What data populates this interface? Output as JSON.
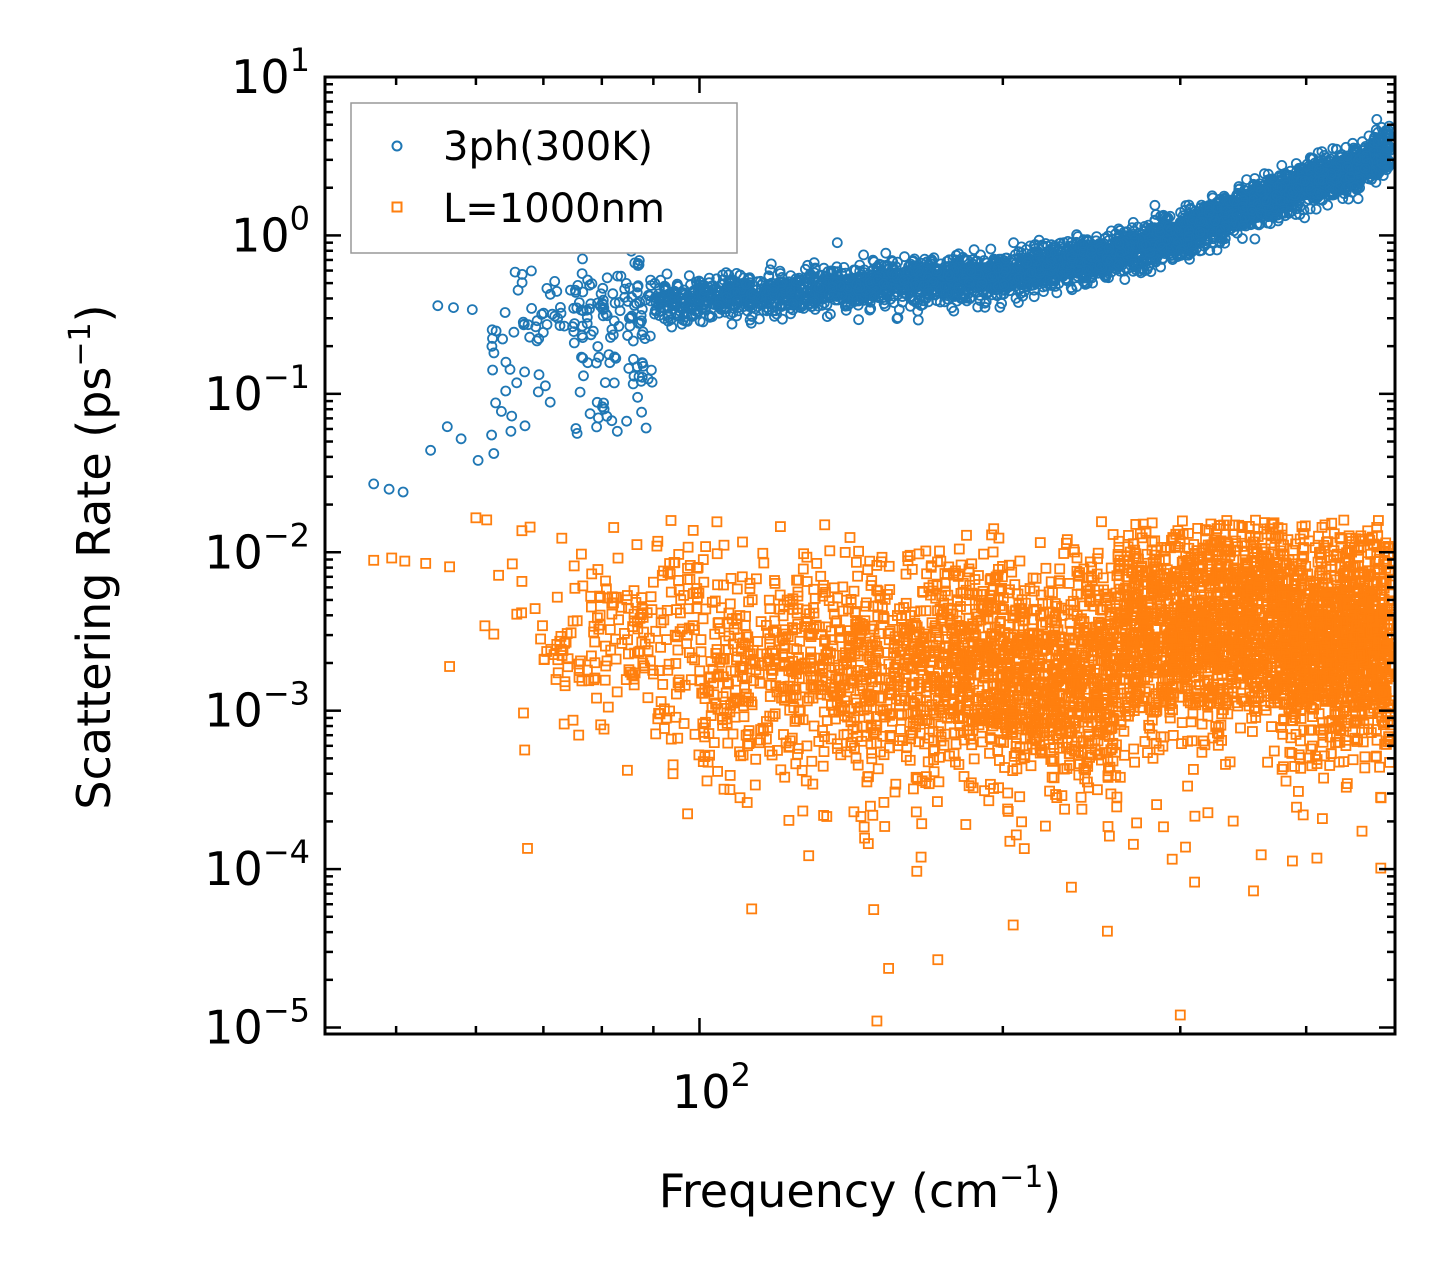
{
  "chart_data": {
    "type": "scatter",
    "xscale": "log",
    "yscale": "log",
    "xlabel": "Frequency (cm",
    "xlabel_sup": "−1",
    "xlabel_tail": ")",
    "ylabel": "Scattering Rate (ps",
    "ylabel_sup": "−1",
    "ylabel_tail": ")",
    "xlim": [
      42.5,
      490
    ],
    "ylim": [
      9.1e-06,
      10
    ],
    "x_ticks": [
      {
        "value": 100,
        "base": "10",
        "exp": "2"
      }
    ],
    "y_ticks": [
      {
        "value": 10,
        "base": "10",
        "exp": "1"
      },
      {
        "value": 1,
        "base": "10",
        "exp": "0"
      },
      {
        "value": 0.1,
        "base": "10",
        "exp": "−1"
      },
      {
        "value": 0.01,
        "base": "10",
        "exp": "−2"
      },
      {
        "value": 0.001,
        "base": "10",
        "exp": "−3"
      },
      {
        "value": 0.0001,
        "base": "10",
        "exp": "−4"
      },
      {
        "value": 1e-05,
        "base": "10",
        "exp": "−5"
      }
    ],
    "legend_position": "top-left",
    "series": [
      {
        "name": "3ph(300K)",
        "marker": "circle",
        "color": "#1f77b4",
        "trend": {
          "x": [
            50,
            60,
            70,
            80,
            100,
            130,
            160,
            200,
            250,
            300,
            350,
            400,
            450,
            480
          ],
          "y": [
            0.026,
            0.25,
            0.32,
            0.36,
            0.4,
            0.45,
            0.5,
            0.55,
            0.72,
            1.0,
            1.5,
            2.1,
            2.6,
            3.5
          ]
        },
        "sample_points": [
          {
            "x": 47.5,
            "y": 0.027
          },
          {
            "x": 49.2,
            "y": 0.025
          },
          {
            "x": 50.8,
            "y": 0.024
          },
          {
            "x": 54.1,
            "y": 0.044
          },
          {
            "x": 56.2,
            "y": 0.062
          },
          {
            "x": 58.0,
            "y": 0.052
          },
          {
            "x": 60.3,
            "y": 0.038
          },
          {
            "x": 62.5,
            "y": 0.042
          },
          {
            "x": 65.0,
            "y": 0.058
          },
          {
            "x": 55.0,
            "y": 0.36
          },
          {
            "x": 57.0,
            "y": 0.35
          },
          {
            "x": 59.5,
            "y": 0.34
          },
          {
            "x": 205.0,
            "y": 0.9
          },
          {
            "x": 137.0,
            "y": 0.9
          },
          {
            "x": 470.0,
            "y": 5.4
          }
        ]
      },
      {
        "name": "L=1000nm",
        "marker": "square",
        "color": "#ff7f0e",
        "sample_points": [
          {
            "x": 47.5,
            "y": 0.0089
          },
          {
            "x": 49.5,
            "y": 0.0092
          },
          {
            "x": 51.0,
            "y": 0.0088
          },
          {
            "x": 53.5,
            "y": 0.0085
          },
          {
            "x": 56.5,
            "y": 0.0081
          },
          {
            "x": 56.5,
            "y": 0.0019
          },
          {
            "x": 60.0,
            "y": 0.0165
          },
          {
            "x": 61.5,
            "y": 0.016
          },
          {
            "x": 67.5,
            "y": 0.000135
          },
          {
            "x": 150.0,
            "y": 1.1e-05
          },
          {
            "x": 300.0,
            "y": 1.2e-05
          },
          {
            "x": 470.0,
            "y": 0.011
          }
        ]
      }
    ]
  }
}
